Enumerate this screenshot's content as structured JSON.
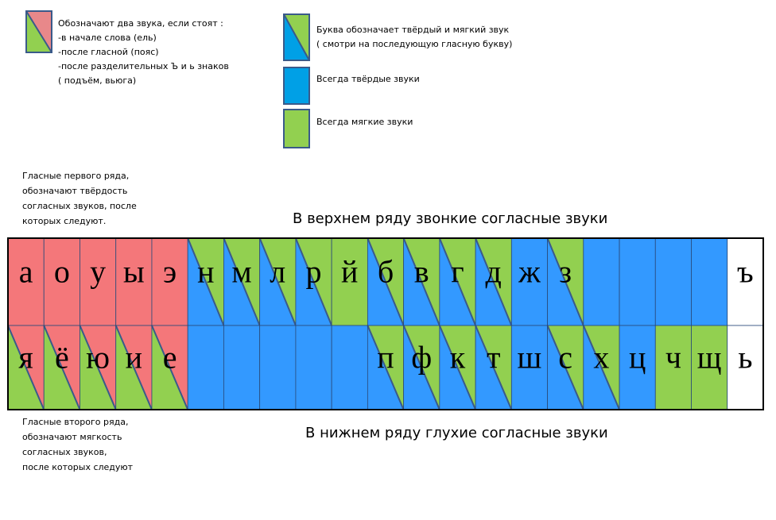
{
  "legend": [
    {
      "colors": [
        "#e8888a",
        "#92d050"
      ],
      "lines": [
        "Обозначают два звука, если стоят :",
        "-в начале слова (ель)",
        "-после гласной (пояс)",
        "-после разделительных Ъ и ь знаков",
        " ( подъём, вьюга)"
      ]
    },
    {
      "colors": [
        "#92d050",
        "#00a0e6"
      ],
      "lines": [
        "Буква обозначает твёрдый и мягкий звук",
        " ( смотри на последующую гласную букву)"
      ]
    },
    {
      "colors": [
        "#00a0e6"
      ],
      "lines": [
        "Всегда твёрдые звуки"
      ]
    },
    {
      "colors": [
        "#92d050"
      ],
      "lines": [
        "Всегда мягкие звуки"
      ]
    }
  ],
  "notes": {
    "first_row": [
      "Гласные первого ряда,",
      "обозначают твёрдость",
      " согласных звуков, после",
      "которых следуют."
    ],
    "second_row": [
      "Гласные второго ряда,",
      "обозначают мягкость",
      "согласных звуков,",
      "после которых следуют"
    ],
    "top_caption": "В верхнем ряду звонкие согласные звуки",
    "bottom_caption": "В нижнем ряду глухие согласные звуки"
  },
  "rows": [
    [
      {
        "letter": "а",
        "colors": [
          "#f4777a"
        ]
      },
      {
        "letter": "о",
        "colors": [
          "#f4777a"
        ]
      },
      {
        "letter": "у",
        "colors": [
          "#f4777a"
        ]
      },
      {
        "letter": "ы",
        "colors": [
          "#f4777a"
        ]
      },
      {
        "letter": "э",
        "colors": [
          "#f4777a"
        ]
      },
      {
        "letter": "н",
        "colors": [
          "#92d050",
          "#3399ff"
        ]
      },
      {
        "letter": "м",
        "colors": [
          "#92d050",
          "#3399ff"
        ]
      },
      {
        "letter": "л",
        "colors": [
          "#92d050",
          "#3399ff"
        ]
      },
      {
        "letter": "р",
        "colors": [
          "#92d050",
          "#3399ff"
        ]
      },
      {
        "letter": "й",
        "colors": [
          "#92d050"
        ]
      },
      {
        "letter": "б",
        "colors": [
          "#92d050",
          "#3399ff"
        ]
      },
      {
        "letter": "в",
        "colors": [
          "#92d050",
          "#3399ff"
        ]
      },
      {
        "letter": "г",
        "colors": [
          "#92d050",
          "#3399ff"
        ]
      },
      {
        "letter": "д",
        "colors": [
          "#92d050",
          "#3399ff"
        ]
      },
      {
        "letter": "ж",
        "colors": [
          "#3399ff"
        ]
      },
      {
        "letter": "з",
        "colors": [
          "#92d050",
          "#3399ff"
        ]
      },
      {
        "letter": null,
        "colors": [
          "#3399ff"
        ]
      },
      {
        "letter": null,
        "colors": [
          "#3399ff"
        ]
      },
      {
        "letter": null,
        "colors": [
          "#3399ff"
        ]
      },
      {
        "letter": null,
        "colors": [
          "#3399ff"
        ]
      },
      {
        "letter": "ъ",
        "colors": [
          "#ffffff"
        ]
      }
    ],
    [
      {
        "letter": "я",
        "colors": [
          "#f4777a",
          "#92d050"
        ]
      },
      {
        "letter": "ё",
        "colors": [
          "#f4777a",
          "#92d050"
        ]
      },
      {
        "letter": "ю",
        "colors": [
          "#f4777a",
          "#92d050"
        ]
      },
      {
        "letter": "и",
        "colors": [
          "#f4777a",
          "#92d050"
        ]
      },
      {
        "letter": "е",
        "colors": [
          "#f4777a",
          "#92d050"
        ]
      },
      {
        "letter": null,
        "colors": [
          "#3399ff"
        ]
      },
      {
        "letter": null,
        "colors": [
          "#3399ff"
        ]
      },
      {
        "letter": null,
        "colors": [
          "#3399ff"
        ]
      },
      {
        "letter": null,
        "colors": [
          "#3399ff"
        ]
      },
      {
        "letter": null,
        "colors": [
          "#3399ff"
        ]
      },
      {
        "letter": "п",
        "colors": [
          "#92d050",
          "#3399ff"
        ]
      },
      {
        "letter": "ф",
        "colors": [
          "#92d050",
          "#3399ff"
        ]
      },
      {
        "letter": "к",
        "colors": [
          "#92d050",
          "#3399ff"
        ]
      },
      {
        "letter": "т",
        "colors": [
          "#92d050",
          "#3399ff"
        ]
      },
      {
        "letter": "ш",
        "colors": [
          "#3399ff"
        ]
      },
      {
        "letter": "с",
        "colors": [
          "#92d050",
          "#3399ff"
        ]
      },
      {
        "letter": "х",
        "colors": [
          "#92d050",
          "#3399ff"
        ]
      },
      {
        "letter": "ц",
        "colors": [
          "#3399ff"
        ]
      },
      {
        "letter": "ч",
        "colors": [
          "#92d050"
        ]
      },
      {
        "letter": "щ",
        "colors": [
          "#92d050"
        ]
      },
      {
        "letter": "ь",
        "colors": [
          "#ffffff"
        ]
      }
    ]
  ]
}
